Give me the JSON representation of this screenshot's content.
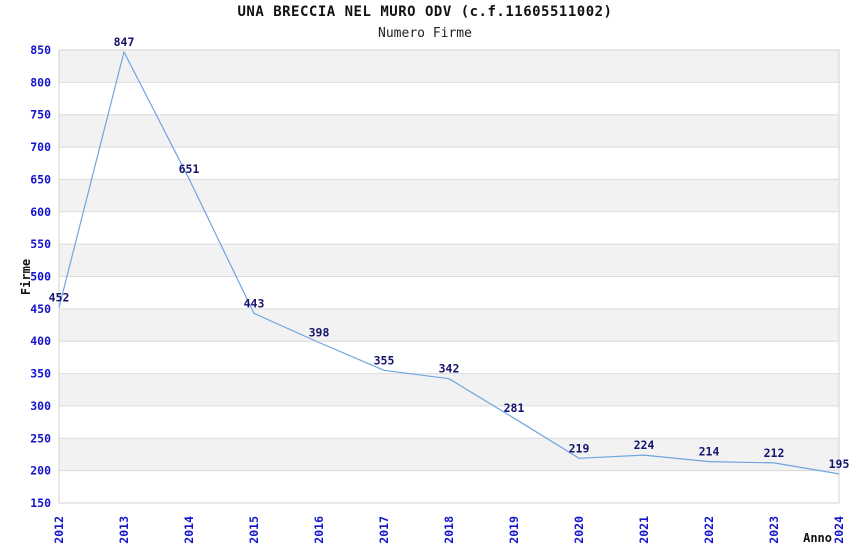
{
  "chart_data": {
    "type": "line",
    "title": "UNA BRECCIA NEL MURO ODV (c.f.11605511002)",
    "subtitle": "Numero Firme",
    "xlabel": "Anno",
    "ylabel": "Firme",
    "x": [
      "2012",
      "2013",
      "2014",
      "2015",
      "2016",
      "2017",
      "2018",
      "2019",
      "2020",
      "2021",
      "2022",
      "2023",
      "2024"
    ],
    "series": [
      {
        "name": "Numero Firme",
        "values": [
          452,
          847,
          651,
          443,
          398,
          355,
          342,
          281,
          219,
          224,
          214,
          212,
          195
        ]
      }
    ],
    "ylim": [
      150,
      850
    ],
    "yticks": [
      150,
      200,
      250,
      300,
      350,
      400,
      450,
      500,
      550,
      600,
      650,
      700,
      750,
      800,
      850
    ],
    "grid": true,
    "banded_background": true,
    "legend": "none",
    "data_labels": true,
    "colors": {
      "line": "#6FA5E0",
      "tick_label": "#1414CD",
      "data_label": "#15156E",
      "band": "#F2F2F2",
      "gridline": "#DBDBDB",
      "plot_border": "#D3D3D3",
      "text": "#111111",
      "background": "#FFFFFF"
    }
  }
}
